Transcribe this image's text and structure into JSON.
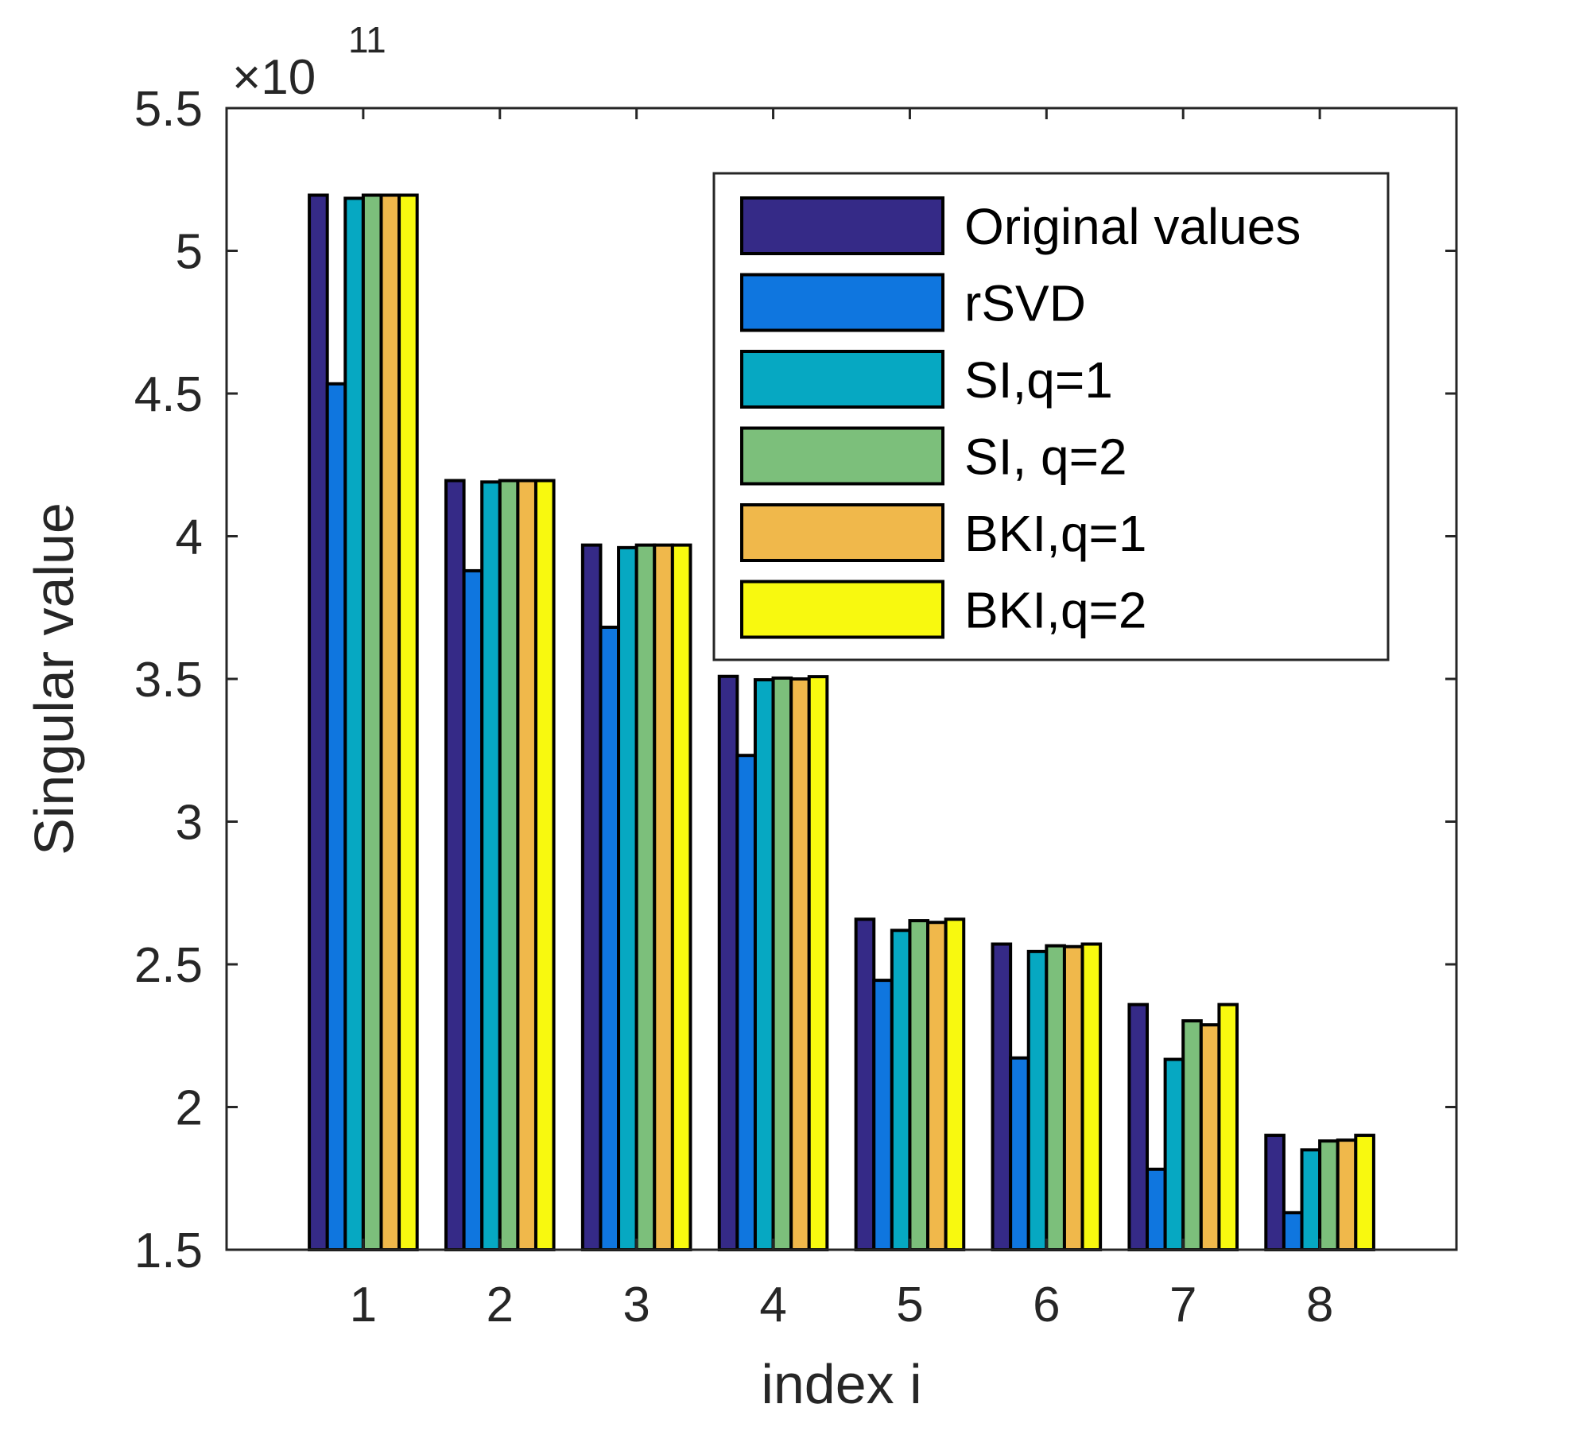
{
  "chart_data": {
    "type": "bar",
    "title": "",
    "xlabel": "index i",
    "ylabel": "Singular value",
    "y_exponent_label": "×10",
    "y_exponent_power": "11",
    "ylim": [
      1.5,
      5.5
    ],
    "yticks": [
      1.5,
      2,
      2.5,
      3,
      3.5,
      4,
      4.5,
      5,
      5.5
    ],
    "ytick_labels": [
      "1.5",
      "2",
      "2.5",
      "3",
      "3.5",
      "4",
      "4.5",
      "5",
      "5.5"
    ],
    "categories": [
      "1",
      "2",
      "3",
      "4",
      "5",
      "6",
      "7",
      "8"
    ],
    "grid": false,
    "legend_position": "top-right",
    "series": [
      {
        "name": "Original values",
        "color": "#352a87",
        "values": [
          5.195,
          4.195,
          3.969,
          3.509,
          2.658,
          2.571,
          2.359,
          1.901
        ]
      },
      {
        "name": "rSVD",
        "color": "#0f76df",
        "values": [
          4.534,
          3.879,
          3.681,
          3.232,
          2.444,
          2.172,
          1.782,
          1.63
        ]
      },
      {
        "name": "SI,q=1",
        "color": "#06a8c2",
        "values": [
          5.184,
          4.19,
          3.96,
          3.497,
          2.619,
          2.545,
          2.167,
          1.85
        ]
      },
      {
        "name": "SI, q=2",
        "color": "#7cbf7b",
        "values": [
          5.195,
          4.195,
          3.969,
          3.503,
          2.653,
          2.565,
          2.302,
          1.881
        ]
      },
      {
        "name": "BKI,q=1",
        "color": "#f0b84b",
        "values": [
          5.195,
          4.195,
          3.969,
          3.5,
          2.647,
          2.562,
          2.288,
          1.884
        ]
      },
      {
        "name": "BKI,q=2",
        "color": "#f8f90f",
        "values": [
          5.195,
          4.195,
          3.969,
          3.508,
          2.658,
          2.571,
          2.359,
          1.901
        ]
      }
    ]
  }
}
